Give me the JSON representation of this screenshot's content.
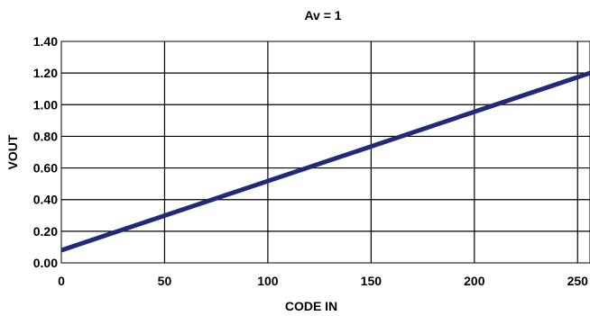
{
  "chart_data": {
    "type": "line",
    "title": "Av = 1",
    "xlabel": "CODE IN",
    "ylabel": "VOUT",
    "xlim": [
      0,
      256
    ],
    "ylim": [
      0,
      1.4
    ],
    "x_ticks": [
      0,
      50,
      100,
      150,
      200,
      250
    ],
    "x_tick_labels": [
      "0",
      "50",
      "100",
      "150",
      "200",
      "250"
    ],
    "y_ticks": [
      0,
      0.2,
      0.4,
      0.6,
      0.8,
      1.0,
      1.2,
      1.4
    ],
    "y_tick_labels": [
      "0.00",
      "0.20",
      "0.40",
      "0.60",
      "0.80",
      "1.00",
      "1.20",
      "1.40"
    ],
    "grid": true,
    "legend": "none",
    "series": [
      {
        "color": "#1f2a7a",
        "x": [
          0,
          256
        ],
        "y": [
          0.08,
          1.2
        ]
      }
    ]
  }
}
